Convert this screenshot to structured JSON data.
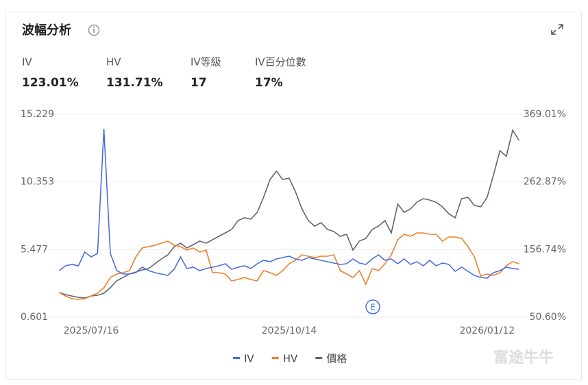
{
  "panel": {
    "title": "波幅分析",
    "stats": [
      {
        "label": "IV",
        "value": "123.01%"
      },
      {
        "label": "HV",
        "value": "131.71%"
      },
      {
        "label": "IV等級",
        "value": "17"
      },
      {
        "label": "IV百分位數",
        "value": "17%"
      }
    ],
    "watermark": "富途牛牛"
  },
  "chart_data": {
    "type": "line",
    "categories": [
      null,
      null,
      null,
      null,
      null,
      "2025/07/16",
      null,
      null,
      null,
      null,
      null,
      null,
      null,
      null,
      null,
      null,
      null,
      null,
      null,
      null,
      null,
      null,
      null,
      null,
      null,
      null,
      null,
      null,
      null,
      null,
      null,
      null,
      null,
      null,
      null,
      null,
      "2025/10/14",
      null,
      null,
      null,
      null,
      null,
      null,
      null,
      null,
      null,
      null,
      null,
      null,
      null,
      null,
      null,
      null,
      null,
      null,
      null,
      null,
      null,
      null,
      null,
      null,
      null,
      null,
      null,
      null,
      null,
      null,
      "2026/01/12",
      null,
      null,
      null,
      null,
      null
    ],
    "series": [
      {
        "name": "IV",
        "color": "#4a6ee0",
        "axis": "y2",
        "values": [
          123.7,
          131.3,
          133.4,
          131.3,
          152.8,
          145.3,
          150.6,
          346.4,
          150.6,
          123.7,
          118.4,
          118.4,
          120.5,
          129.1,
          123.7,
          120.5,
          118.4,
          116.2,
          125.9,
          145.3,
          127.0,
          129.1,
          123.7,
          127.0,
          129.1,
          131.3,
          134.5,
          125.9,
          129.1,
          131.3,
          127.0,
          134.5,
          139.9,
          137.7,
          142.0,
          144.2,
          146.3,
          142.0,
          139.9,
          144.2,
          142.0,
          139.9,
          137.7,
          135.6,
          133.4,
          134.5,
          142.0,
          135.6,
          133.4,
          142.0,
          148.5,
          139.9,
          142.0,
          134.5,
          142.0,
          133.4,
          137.7,
          131.3,
          139.9,
          131.3,
          135.6,
          133.4,
          122.7,
          129.1,
          122.7,
          116.2,
          113.0,
          111.9,
          120.5,
          123.7,
          129.1,
          127.0,
          125.9
        ]
      },
      {
        "name": "HV",
        "color": "#f07f2a",
        "axis": "y2",
        "values": [
          89.3,
          84.0,
          79.6,
          78.6,
          79.6,
          84.0,
          88.2,
          96.9,
          113.0,
          118.4,
          120.5,
          123.7,
          145.3,
          159.2,
          161.4,
          163.5,
          166.8,
          170.0,
          163.5,
          161.4,
          156.0,
          159.2,
          152.8,
          156.0,
          120.5,
          120.5,
          118.4,
          107.6,
          109.8,
          113.0,
          109.8,
          107.6,
          123.7,
          120.5,
          116.2,
          123.7,
          134.5,
          139.9,
          148.5,
          146.3,
          144.2,
          146.3,
          146.3,
          148.5,
          123.7,
          118.4,
          113.0,
          123.7,
          102.2,
          127.0,
          123.7,
          134.5,
          148.5,
          172.2,
          180.8,
          177.6,
          182.9,
          182.9,
          180.8,
          180.8,
          170.0,
          176.5,
          176.5,
          174.3,
          161.4,
          145.3,
          115.1,
          118.4,
          116.2,
          120.5,
          131.3,
          137.7,
          134.5
        ]
      },
      {
        "name": "價格",
        "color": "#5f6673",
        "values": [
          2.38,
          2.23,
          2.13,
          2.03,
          1.99,
          2.13,
          2.18,
          2.33,
          2.73,
          3.22,
          3.47,
          3.72,
          3.86,
          4.01,
          4.11,
          4.46,
          4.8,
          5.1,
          5.69,
          5.94,
          5.59,
          5.84,
          6.09,
          5.94,
          6.19,
          6.43,
          6.68,
          6.93,
          7.57,
          7.77,
          7.67,
          8.16,
          9.25,
          10.53,
          11.13,
          10.53,
          10.63,
          9.64,
          8.41,
          7.57,
          7.17,
          7.42,
          6.93,
          6.78,
          6.43,
          6.58,
          5.44,
          6.09,
          6.28,
          6.93,
          7.17,
          7.57,
          6.68,
          8.76,
          8.16,
          8.41,
          8.9,
          9.15,
          9.05,
          8.9,
          8.56,
          8.06,
          7.77,
          9.15,
          9.25,
          8.66,
          8.56,
          9.25,
          10.88,
          12.61,
          12.21,
          14.09,
          13.35
        ]
      }
    ],
    "ylim": [
      0.601,
      15.229
    ],
    "yticks": [
      0.601,
      5.477,
      10.353,
      15.229
    ],
    "y2lim": [
      50.6,
      369.01
    ],
    "y2ticks": [
      {
        "value": 50.6,
        "label": "50.60%"
      },
      {
        "value": 156.74,
        "label": "156.74%"
      },
      {
        "value": 262.87,
        "label": "262.87%"
      },
      {
        "value": 369.01,
        "label": "369.01%"
      }
    ],
    "grid": true,
    "event_marker": {
      "label": "E",
      "color": "#4a6ee0"
    }
  }
}
